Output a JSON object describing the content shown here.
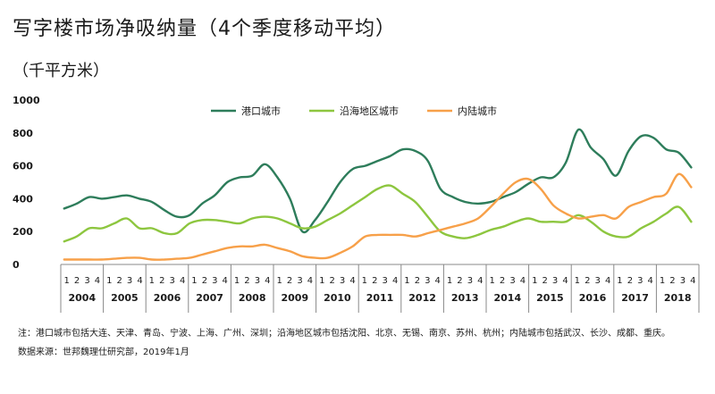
{
  "title": "写字楼市场净吸纳量（4个季度移动平均）",
  "unit_label": "（千平方米）",
  "notes": {
    "line1": "注：港口城市包括大连、天津、青岛、宁波、上海、广州、深圳；沿海地区城市包括沈阳、北京、无锡、南京、苏州、杭州；内陆城市包括武汉、长沙、成都、重庆。",
    "line2": "数据来源：世邦魏理仕研究部，2019年1月"
  },
  "chart_data": {
    "type": "line",
    "title": "写字楼市场净吸纳量（4个季度移动平均）",
    "ylabel": "（千平方米）",
    "ylim": [
      0,
      1000
    ],
    "yticks": [
      0,
      200,
      400,
      600,
      800,
      1000
    ],
    "quarter_labels": [
      "1",
      "2",
      "3",
      "4"
    ],
    "years": [
      "2004",
      "2005",
      "2006",
      "2007",
      "2008",
      "2009",
      "2010",
      "2011",
      "2012",
      "2013",
      "2014",
      "2015",
      "2016",
      "2017",
      "2018"
    ],
    "legend_position": "top-center",
    "grid": false,
    "series": [
      {
        "name": "港口城市",
        "color": "#2e7d5b",
        "values": [
          340,
          370,
          410,
          400,
          410,
          420,
          400,
          380,
          330,
          290,
          300,
          370,
          420,
          500,
          530,
          540,
          610,
          530,
          400,
          200,
          270,
          380,
          500,
          580,
          600,
          630,
          660,
          700,
          690,
          630,
          460,
          410,
          380,
          370,
          380,
          410,
          440,
          490,
          530,
          530,
          620,
          820,
          710,
          640,
          540,
          690,
          780,
          770,
          700,
          680,
          590
        ]
      },
      {
        "name": "沿海地区城市",
        "color": "#8dc63f",
        "values": [
          140,
          170,
          220,
          220,
          250,
          280,
          220,
          220,
          190,
          190,
          250,
          270,
          270,
          260,
          250,
          280,
          290,
          280,
          250,
          220,
          230,
          270,
          310,
          360,
          410,
          460,
          480,
          430,
          380,
          290,
          200,
          170,
          160,
          180,
          210,
          230,
          260,
          280,
          260,
          260,
          260,
          300,
          260,
          200,
          170,
          170,
          220,
          260,
          310,
          350,
          260
        ]
      },
      {
        "name": "内陆城市",
        "color": "#f7a049",
        "values": [
          30,
          30,
          30,
          30,
          35,
          40,
          40,
          30,
          30,
          35,
          40,
          60,
          80,
          100,
          110,
          110,
          120,
          100,
          80,
          50,
          40,
          40,
          70,
          110,
          170,
          180,
          180,
          180,
          170,
          190,
          210,
          230,
          250,
          280,
          350,
          430,
          500,
          520,
          460,
          360,
          310,
          280,
          290,
          300,
          280,
          350,
          380,
          410,
          430,
          550,
          470
        ]
      }
    ]
  }
}
